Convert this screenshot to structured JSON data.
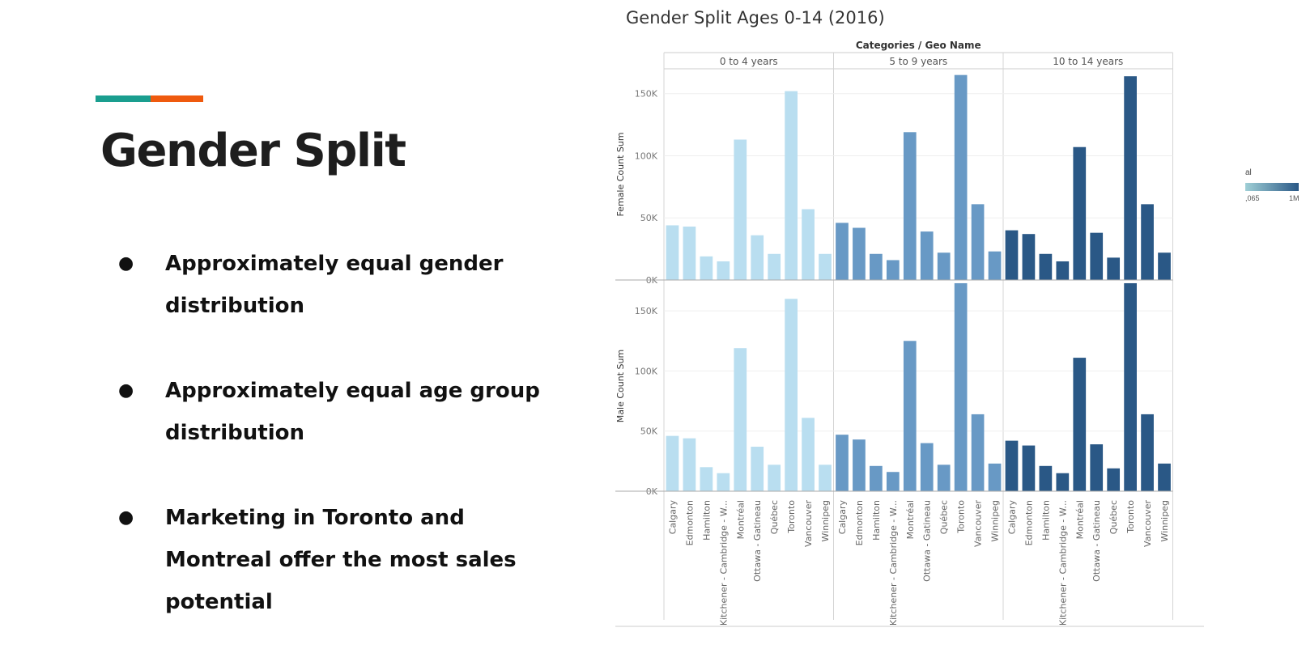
{
  "slide": {
    "title": "Gender Split",
    "accent_colors": [
      "#1a9e8f",
      "#ef5a0e"
    ],
    "bullets": [
      {
        "marker": "●",
        "text": "Approximately equal gender distribution"
      },
      {
        "marker": "●",
        "text": "Approximately equal age group distribution"
      },
      {
        "marker": "●",
        "text": "Marketing in Toronto and Montreal offer the most sales potential"
      }
    ]
  },
  "legend": {
    "title": "al",
    "min_label": ",065",
    "max_label": "1M",
    "colors": [
      "#9fcfd6",
      "#2a5886"
    ]
  },
  "chart_data": {
    "type": "bar",
    "title": "Gender Split Ages 0-14 (2016)",
    "column_header": "Categories  /  Geo Name",
    "groups": [
      "0 to 4 years",
      "5 to 9 years",
      "10 to 14 years"
    ],
    "group_colors": [
      "#b9def0",
      "#6899c5",
      "#2a5886"
    ],
    "categories": [
      "Calgary",
      "Edmonton",
      "Hamilton",
      "Kitchener - Cambridge - W...",
      "Montréal",
      "Ottawa - Gatineau",
      "Québec",
      "Toronto",
      "Vancouver",
      "Winnipeg"
    ],
    "panels": [
      {
        "ylabel": "Female Count Sum",
        "ylim": [
          0,
          170000
        ],
        "yticks": [
          0,
          50000,
          100000,
          150000
        ],
        "yticklabels": [
          "0K",
          "50K",
          "100K",
          "150K"
        ],
        "series": [
          {
            "group": "0 to 4 years",
            "values": [
              44000,
              43000,
              19000,
              15000,
              113000,
              36000,
              21000,
              152000,
              57000,
              21000
            ]
          },
          {
            "group": "5 to 9 years",
            "values": [
              46000,
              42000,
              21000,
              16000,
              119000,
              39000,
              22000,
              165000,
              61000,
              23000
            ]
          },
          {
            "group": "10 to 14 years",
            "values": [
              40000,
              37000,
              21000,
              15000,
              107000,
              38000,
              18000,
              164000,
              61000,
              22000
            ]
          }
        ]
      },
      {
        "ylabel": "Male Count Sum",
        "ylim": [
          0,
          175000
        ],
        "yticks": [
          0,
          50000,
          100000,
          150000
        ],
        "yticklabels": [
          "0K",
          "50K",
          "100K",
          "150K"
        ],
        "series": [
          {
            "group": "0 to 4 years",
            "values": [
              46000,
              44000,
              20000,
              15000,
              119000,
              37000,
              22000,
              160000,
              61000,
              22000
            ]
          },
          {
            "group": "5 to 9 years",
            "values": [
              47000,
              43000,
              21000,
              16000,
              125000,
              40000,
              22000,
              173000,
              64000,
              23000
            ]
          },
          {
            "group": "10 to 14 years",
            "values": [
              42000,
              38000,
              21000,
              15000,
              111000,
              39000,
              19000,
              173000,
              64000,
              23000
            ]
          }
        ]
      }
    ]
  }
}
